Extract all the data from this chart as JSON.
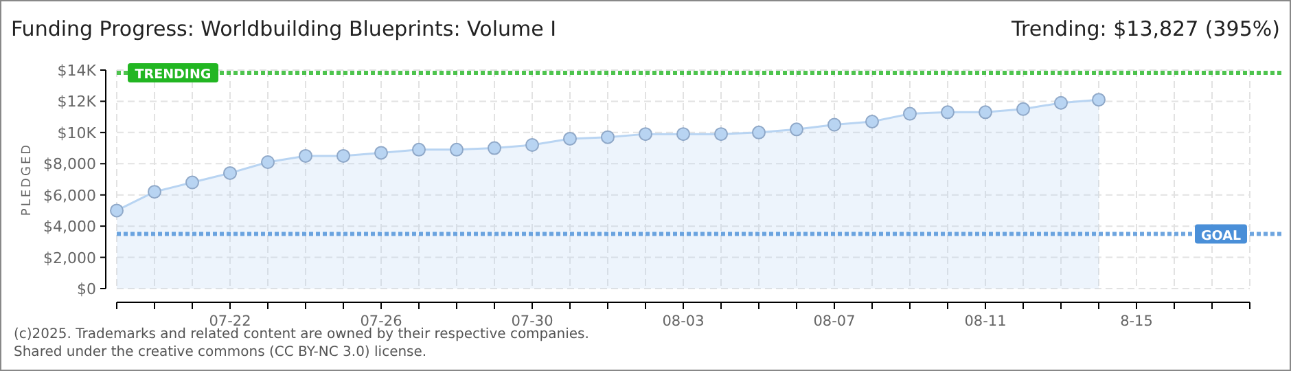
{
  "chart_data": {
    "type": "area",
    "title": "Funding Progress: Worldbuilding Blueprints: Volume I",
    "subtitle": "Trending: $13,827 (395%)",
    "ylabel": "PLEDGED",
    "x": [
      "2025-07-19",
      "2025-07-20",
      "2025-07-21",
      "2025-07-22",
      "2025-07-23",
      "2025-07-24",
      "2025-07-25",
      "2025-07-26",
      "2025-07-27",
      "2025-07-28",
      "2025-07-29",
      "2025-07-30",
      "2025-07-31",
      "2025-08-01",
      "2025-08-02",
      "2025-08-03",
      "2025-08-04",
      "2025-08-05",
      "2025-08-06",
      "2025-08-07",
      "2025-08-08",
      "2025-08-09",
      "2025-08-10",
      "2025-08-11",
      "2025-08-12",
      "2025-08-13",
      "2025-08-14"
    ],
    "series": [
      {
        "color": "#b8d4f2",
        "values": [
          5000,
          6200,
          6800,
          7400,
          8100,
          8500,
          8500,
          8700,
          8900,
          8900,
          9000,
          9200,
          9600,
          9700,
          9900,
          9900,
          9900,
          10000,
          10200,
          10500,
          10700,
          11200,
          11300,
          11300,
          11500,
          11900,
          12100
        ]
      }
    ],
    "xlim": [
      "2025-07-19",
      "2025-08-18"
    ],
    "xticks": [
      {
        "value": "2025-07-19",
        "label": null
      },
      {
        "value": "2025-07-20",
        "label": null
      },
      {
        "value": "2025-07-21",
        "label": null
      },
      {
        "value": "2025-07-22",
        "label": "07-22"
      },
      {
        "value": "2025-07-23",
        "label": null
      },
      {
        "value": "2025-07-24",
        "label": null
      },
      {
        "value": "2025-07-25",
        "label": null
      },
      {
        "value": "2025-07-26",
        "label": "07-26"
      },
      {
        "value": "2025-07-27",
        "label": null
      },
      {
        "value": "2025-07-28",
        "label": null
      },
      {
        "value": "2025-07-29",
        "label": null
      },
      {
        "value": "2025-07-30",
        "label": "07-30"
      },
      {
        "value": "2025-07-31",
        "label": null
      },
      {
        "value": "2025-08-01",
        "label": null
      },
      {
        "value": "2025-08-02",
        "label": null
      },
      {
        "value": "2025-08-03",
        "label": "08-03"
      },
      {
        "value": "2025-08-04",
        "label": null
      },
      {
        "value": "2025-08-05",
        "label": null
      },
      {
        "value": "2025-08-06",
        "label": null
      },
      {
        "value": "2025-08-07",
        "label": "08-07"
      },
      {
        "value": "2025-08-08",
        "label": null
      },
      {
        "value": "2025-08-09",
        "label": null
      },
      {
        "value": "2025-08-10",
        "label": null
      },
      {
        "value": "2025-08-11",
        "label": "08-11"
      },
      {
        "value": "2025-08-12",
        "label": null
      },
      {
        "value": "2025-08-13",
        "label": null
      },
      {
        "value": "2025-08-14",
        "label": null
      },
      {
        "value": "2025-08-15",
        "label": "8-15"
      },
      {
        "value": "2025-08-16",
        "label": null
      },
      {
        "value": "2025-08-17",
        "label": null
      },
      {
        "value": "2025-08-18",
        "label": null
      }
    ],
    "ylim": [
      0,
      14000
    ],
    "yticks": [
      {
        "value": 0,
        "label": "$0"
      },
      {
        "value": 2000,
        "label": "$2,000"
      },
      {
        "value": 4000,
        "label": "$4,000"
      },
      {
        "value": 6000,
        "label": "$6,000"
      },
      {
        "value": 8000,
        "label": "$8,000"
      },
      {
        "value": 10000,
        "label": "$10K"
      },
      {
        "value": 12000,
        "label": "$12K"
      },
      {
        "value": 14000,
        "label": "$14K"
      }
    ],
    "grid": true,
    "marker": "circle",
    "line_style": "solid",
    "ref_lines": [
      {
        "axis": "y",
        "value": 3500,
        "label": "GOAL",
        "color": "#4a8fd8",
        "line_style": "dotted"
      },
      {
        "axis": "y",
        "value": 13827,
        "label": "TRENDING",
        "color": "#22b622",
        "line_style": "dotted"
      }
    ],
    "annotations": [
      "(c)2025. Trademarks and related content are owned by their respective companies.",
      "Shared under the creative commons (CC BY-NC 3.0) license."
    ]
  }
}
